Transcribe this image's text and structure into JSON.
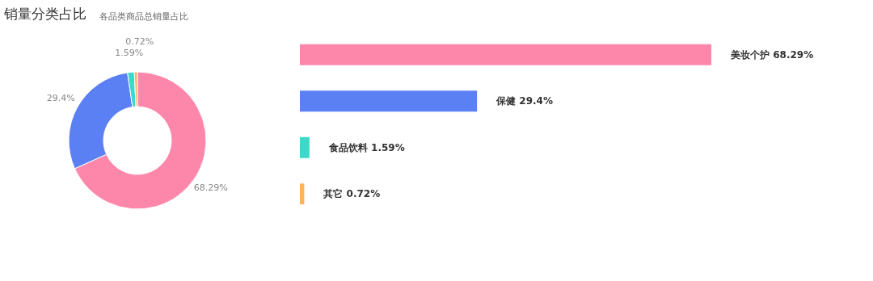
{
  "chart_data": [
    {
      "type": "donut",
      "title": "销量分类占比",
      "subtitle": "各品类商品总销量占比",
      "categories": [
        null,
        null,
        null,
        null
      ],
      "values": [
        68.29,
        29.4,
        1.59,
        0.72
      ],
      "colors": [
        "#fd87ab",
        "#5b80f4",
        "#3dd8c9",
        "#fdb55c"
      ],
      "value_labels": [
        "68.29%",
        "29.4%",
        "1.59%",
        "0.72%"
      ]
    },
    {
      "type": "bar",
      "orientation": "horizontal",
      "categories": [
        null,
        null,
        null,
        null
      ],
      "values": [
        68.29,
        29.4,
        1.59,
        0.72
      ],
      "colors": [
        "#fd87ab",
        "#5b80f4",
        "#3dd8c9",
        "#fdb55c"
      ],
      "value_labels": [
        "美妆个护 68.29%",
        "保健 29.4%",
        "食品饮料 1.59%",
        "其它 0.72%"
      ],
      "tick_labels": false,
      "grid": false
    }
  ]
}
